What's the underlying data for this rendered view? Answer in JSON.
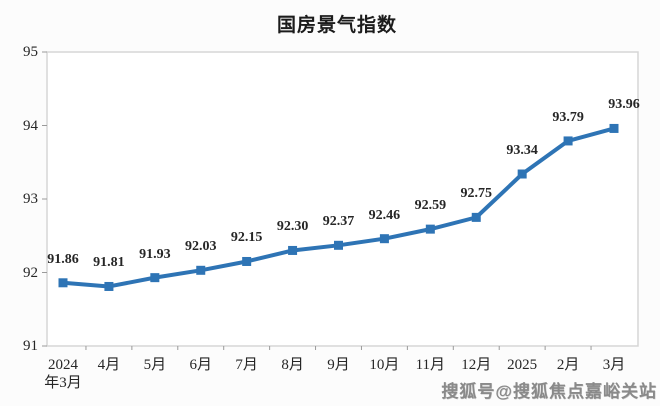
{
  "title": "国房景气指数",
  "watermark": "搜狐号@搜狐焦点嘉峪关站",
  "chart_data": {
    "type": "line",
    "title": "国房景气指数",
    "categories": [
      "2024年3月",
      "4月",
      "5月",
      "6月",
      "7月",
      "8月",
      "9月",
      "10月",
      "11月",
      "12月",
      "2025",
      "2月",
      "3月"
    ],
    "x_tick_lines": [
      [
        "2024",
        "年3月"
      ],
      [
        "4月"
      ],
      [
        "5月"
      ],
      [
        "6月"
      ],
      [
        "7月"
      ],
      [
        "8月"
      ],
      [
        "9月"
      ],
      [
        "10月"
      ],
      [
        "11月"
      ],
      [
        "12月"
      ],
      [
        "2025"
      ],
      [
        "2月"
      ],
      [
        "3月"
      ]
    ],
    "values": [
      91.86,
      91.81,
      91.93,
      92.03,
      92.15,
      92.3,
      92.37,
      92.46,
      92.59,
      92.75,
      93.34,
      93.79,
      93.96
    ],
    "data_labels": [
      "91.86",
      "91.81",
      "91.93",
      "92.03",
      "92.15",
      "92.30",
      "92.37",
      "92.46",
      "92.59",
      "92.75",
      "93.34",
      "93.79",
      "93.96"
    ],
    "xlabel": "",
    "ylabel": "",
    "ylim": [
      91,
      95
    ],
    "y_ticks": [
      95,
      94,
      93,
      92,
      91
    ],
    "grid": false,
    "legend": "none",
    "line_color": "#2E74B5",
    "marker": "square",
    "plot_border_color": "#d6d6d6",
    "tick_color": "#9a9a9a",
    "background_color": "#fcfcfc"
  }
}
